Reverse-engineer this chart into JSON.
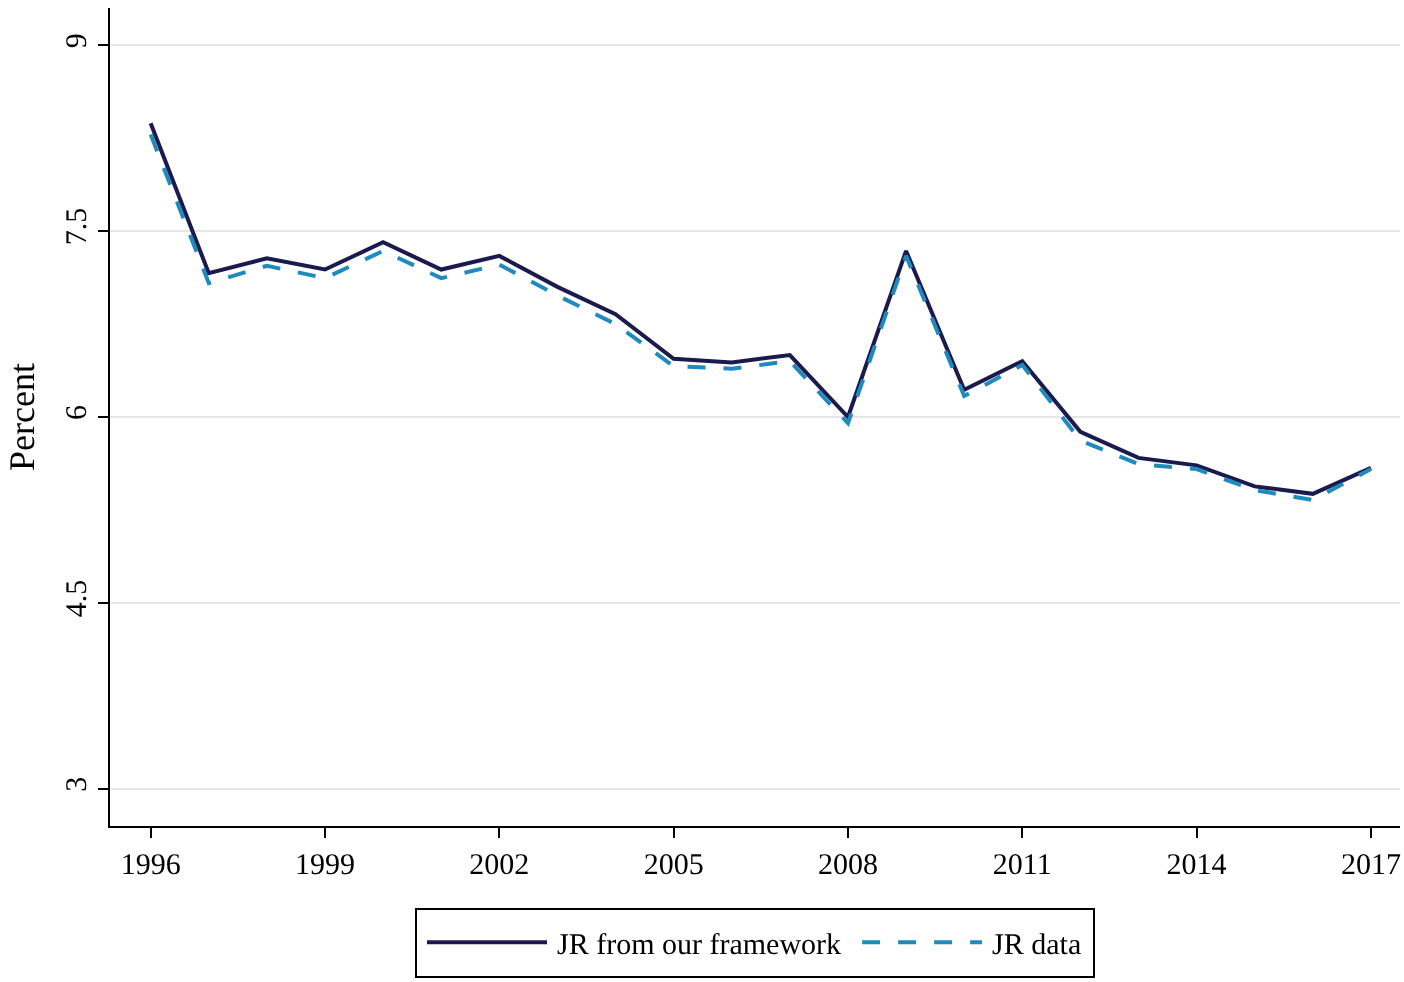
{
  "chart_data": {
    "type": "line",
    "ylabel": "Percent",
    "x": [
      1996,
      1997,
      1998,
      1999,
      2000,
      2001,
      2002,
      2003,
      2004,
      2005,
      2006,
      2007,
      2008,
      2009,
      2010,
      2011,
      2012,
      2013,
      2014,
      2015,
      2016,
      2017
    ],
    "series": [
      {
        "name": "JR from our framework",
        "color": "#1a1a4e",
        "line_style": "solid",
        "values": [
          8.37,
          7.16,
          7.28,
          7.19,
          7.41,
          7.19,
          7.3,
          7.05,
          6.83,
          6.47,
          6.44,
          6.5,
          6.0,
          7.34,
          6.22,
          6.45,
          5.88,
          5.67,
          5.61,
          5.44,
          5.38,
          5.59
        ]
      },
      {
        "name": "JR data",
        "color": "#1f8bbd",
        "line_style": "dashed",
        "values": [
          8.28,
          7.08,
          7.22,
          7.12,
          7.34,
          7.12,
          7.23,
          6.98,
          6.75,
          6.41,
          6.39,
          6.45,
          5.95,
          7.3,
          6.17,
          6.42,
          5.81,
          5.62,
          5.58,
          5.41,
          5.33,
          5.58
        ]
      }
    ],
    "xlim": [
      1995.3,
      2017.5
    ],
    "xticks": [
      1996,
      1999,
      2002,
      2005,
      2008,
      2011,
      2014,
      2017
    ],
    "ylim": [
      2.7,
      9.3
    ],
    "yticks": [
      {
        "value": 3,
        "label": "3"
      },
      {
        "value": 4.5,
        "label": "4.5"
      },
      {
        "value": 6,
        "label": "6"
      },
      {
        "value": 7.5,
        "label": "7.5"
      },
      {
        "value": 9,
        "label": "9"
      }
    ],
    "grid": "y",
    "legend": "bottom",
    "marker": "none"
  }
}
